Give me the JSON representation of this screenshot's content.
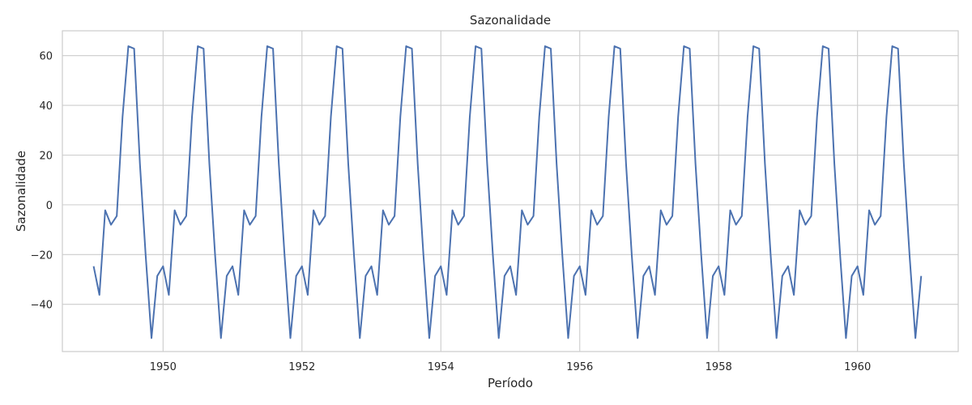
{
  "chart_data": {
    "type": "line",
    "title": "Sazonalidade",
    "xlabel": "Período",
    "ylabel": "Sazonalidade",
    "xlim": [
      1948.55,
      1961.45
    ],
    "ylim": [
      -59,
      70
    ],
    "xticks": [
      1950,
      1952,
      1954,
      1956,
      1958,
      1960
    ],
    "xtick_labels": [
      "1950",
      "1952",
      "1954",
      "1956",
      "1958",
      "1960"
    ],
    "yticks": [
      -40,
      -20,
      0,
      20,
      40,
      60
    ],
    "ytick_labels": [
      "−40",
      "−20",
      "0",
      "20",
      "40",
      "60"
    ],
    "grid": true,
    "legend": "none",
    "line_color": "#4c72b0",
    "x_start": 1949.0,
    "x_step_months": 1,
    "points_count": 144,
    "monthly_pattern": [
      -24.7,
      -36.2,
      -2.2,
      -8.0,
      -4.5,
      35.4,
      63.8,
      62.8,
      16.5,
      -20.6,
      -53.6,
      -28.6
    ],
    "y": [
      -24.7,
      -36.2,
      -2.2,
      -8.0,
      -4.5,
      35.4,
      63.8,
      62.8,
      16.5,
      -20.6,
      -53.6,
      -28.6,
      -24.7,
      -36.2,
      -2.2,
      -8.0,
      -4.5,
      35.4,
      63.8,
      62.8,
      16.5,
      -20.6,
      -53.6,
      -28.6,
      -24.7,
      -36.2,
      -2.2,
      -8.0,
      -4.5,
      35.4,
      63.8,
      62.8,
      16.5,
      -20.6,
      -53.6,
      -28.6,
      -24.7,
      -36.2,
      -2.2,
      -8.0,
      -4.5,
      35.4,
      63.8,
      62.8,
      16.5,
      -20.6,
      -53.6,
      -28.6,
      -24.7,
      -36.2,
      -2.2,
      -8.0,
      -4.5,
      35.4,
      63.8,
      62.8,
      16.5,
      -20.6,
      -53.6,
      -28.6,
      -24.7,
      -36.2,
      -2.2,
      -8.0,
      -4.5,
      35.4,
      63.8,
      62.8,
      16.5,
      -20.6,
      -53.6,
      -28.6,
      -24.7,
      -36.2,
      -2.2,
      -8.0,
      -4.5,
      35.4,
      63.8,
      62.8,
      16.5,
      -20.6,
      -53.6,
      -28.6,
      -24.7,
      -36.2,
      -2.2,
      -8.0,
      -4.5,
      35.4,
      63.8,
      62.8,
      16.5,
      -20.6,
      -53.6,
      -28.6,
      -24.7,
      -36.2,
      -2.2,
      -8.0,
      -4.5,
      35.4,
      63.8,
      62.8,
      16.5,
      -20.6,
      -53.6,
      -28.6,
      -24.7,
      -36.2,
      -2.2,
      -8.0,
      -4.5,
      35.4,
      63.8,
      62.8,
      16.5,
      -20.6,
      -53.6,
      -28.6,
      -24.7,
      -36.2,
      -2.2,
      -8.0,
      -4.5,
      35.4,
      63.8,
      62.8,
      16.5,
      -20.6,
      -53.6,
      -28.6,
      -24.7,
      -36.2,
      -2.2,
      -8.0,
      -4.5,
      35.4,
      63.8,
      62.8,
      16.5,
      -20.6,
      -53.6,
      -28.6
    ]
  }
}
